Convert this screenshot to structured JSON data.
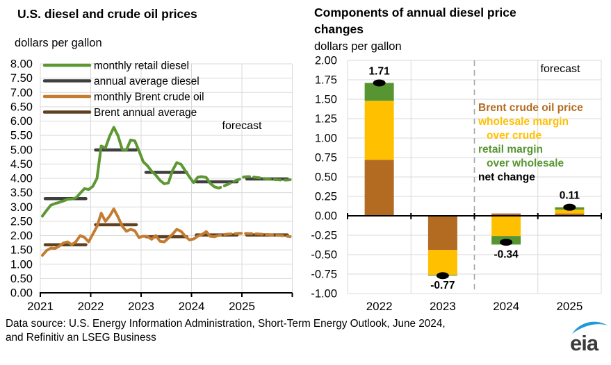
{
  "page": {
    "footer": {
      "line1": "Data source: U.S. Energy Information Administration, Short-Term Energy Outlook, June 2024,",
      "line2": "and Refinitiv an LSEG Business",
      "logo_text": "eia",
      "logo_swoosh_color": "#2499d6",
      "logo_text_color": "#3b3b3b"
    }
  },
  "colors": {
    "diesel_green": "#5d9732",
    "annual_gray": "#3f3f3f",
    "brent_orange": "#c47c32",
    "brent_brown_dark": "#5e4220",
    "bar_brown": "#b26b21",
    "bar_yellow": "#ffc000",
    "bar_green": "#579532",
    "gridline": "#d9d9d9",
    "divider": "#a6a6a6",
    "axis": "#000000"
  },
  "chart_data": [
    {
      "type": "line",
      "title": "U.S. diesel and crude oil prices",
      "units_label": "dollars per gallon",
      "forecast_label": "forecast",
      "ylim": [
        0,
        8
      ],
      "ytick_step": 0.5,
      "ytick_labels": [
        "8.00",
        "7.50",
        "7.00",
        "6.50",
        "6.00",
        "5.50",
        "5.00",
        "4.50",
        "4.00",
        "3.50",
        "3.00",
        "2.50",
        "2.00",
        "1.50",
        "1.00",
        "0.50",
        "0.00"
      ],
      "x_labels": [
        "2021",
        "2022",
        "2023",
        "2024",
        "2025"
      ],
      "months_per_year": 12,
      "forecast_start_month_index": 41,
      "grid": true,
      "legend_position": "top-left-inside",
      "series": [
        {
          "name": "monthly retail diesel",
          "kind": "monthly",
          "color": "#5d9732",
          "values": [
            2.68,
            2.88,
            3.06,
            3.12,
            3.16,
            3.21,
            3.27,
            3.28,
            3.32,
            3.48,
            3.64,
            3.61,
            3.72,
            4.0,
            5.13,
            5.06,
            5.47,
            5.78,
            5.49,
            5.01,
            4.99,
            5.34,
            5.31,
            4.96,
            4.58,
            4.44,
            4.25,
            4.11,
            3.93,
            3.81,
            3.84,
            4.28,
            4.55,
            4.49,
            4.27,
            4.05,
            3.85,
            4.04,
            4.06,
            4.03,
            3.82,
            3.7,
            3.66,
            3.72,
            3.78,
            3.85,
            3.92,
            3.97,
            4.05,
            4.06,
            4.05,
            4.03,
            4.01,
            3.99,
            3.97,
            3.96,
            3.95,
            3.94,
            3.94,
            3.95
          ]
        },
        {
          "name": "annual average diesel",
          "kind": "annual",
          "color": "#3f3f3f",
          "values": [
            3.29,
            4.99,
            4.21,
            3.88,
            3.98
          ]
        },
        {
          "name": "monthly Brent crude oil",
          "kind": "monthly",
          "color": "#c47c32",
          "values": [
            1.31,
            1.48,
            1.56,
            1.55,
            1.63,
            1.74,
            1.78,
            1.68,
            1.79,
            2.0,
            1.94,
            1.78,
            2.05,
            2.32,
            2.78,
            2.5,
            2.68,
            2.93,
            2.65,
            2.33,
            2.15,
            2.22,
            2.17,
            1.93,
            1.98,
            1.97,
            1.87,
            2.0,
            1.8,
            1.78,
            1.91,
            2.05,
            2.22,
            2.15,
            1.98,
            1.85,
            1.88,
            1.98,
            2.04,
            2.14,
            1.97,
            1.96,
            2.01,
            2.03,
            2.05,
            2.06,
            2.07,
            2.08,
            2.08,
            2.07,
            2.07,
            2.06,
            2.05,
            2.04,
            2.03,
            2.02,
            2.01,
            2.0,
            1.98,
            1.96
          ]
        },
        {
          "name": "Brent annual average",
          "kind": "annual",
          "color": "#5e4220",
          "values": [
            1.68,
            2.38,
            1.96,
            2.02,
            2.02
          ]
        }
      ]
    },
    {
      "type": "bar",
      "title": "Components of annual diesel price changes",
      "units_label": "dollars per gallon",
      "forecast_label": "forecast",
      "ylim": [
        -1,
        2
      ],
      "ytick_step": 0.25,
      "ytick_labels": [
        "2.00",
        "1.75",
        "1.50",
        "1.25",
        "1.00",
        "0.75",
        "0.50",
        "0.25",
        "0.00",
        "-0.25",
        "-0.50",
        "-0.75",
        "-1.00"
      ],
      "categories": [
        "2022",
        "2023",
        "2024",
        "2025"
      ],
      "forecast_divider_after_category": "2023",
      "grid": true,
      "series": [
        {
          "name": "Brent crude oil price",
          "color": "#b26b21",
          "values": [
            0.72,
            -0.44,
            0.03,
            0.03
          ]
        },
        {
          "name": "wholesale margin over crude",
          "color": "#ffc000",
          "values": [
            0.76,
            -0.32,
            -0.26,
            0.05
          ]
        },
        {
          "name": "retail margin over wholesale",
          "color": "#579532",
          "values": [
            0.23,
            -0.01,
            -0.11,
            0.03
          ]
        }
      ],
      "net_change": {
        "name": "net change",
        "color": "#000000",
        "values": [
          1.71,
          -0.77,
          -0.34,
          0.11
        ]
      },
      "net_labels": [
        "1.71",
        "-0.77",
        "-0.34",
        "0.11"
      ],
      "legend_lines": [
        {
          "text": "Brent crude oil price",
          "color": "#b26b21",
          "indent": 0
        },
        {
          "text": "wholesale margin",
          "color": "#ffc000",
          "indent": 0
        },
        {
          "text": "over crude",
          "color": "#ffc000",
          "indent": 1
        },
        {
          "text": "retail margin",
          "color": "#579532",
          "indent": 0
        },
        {
          "text": "over wholesale",
          "color": "#579532",
          "indent": 1
        },
        {
          "text": "net change",
          "color": "#000000",
          "indent": 0
        }
      ]
    }
  ]
}
